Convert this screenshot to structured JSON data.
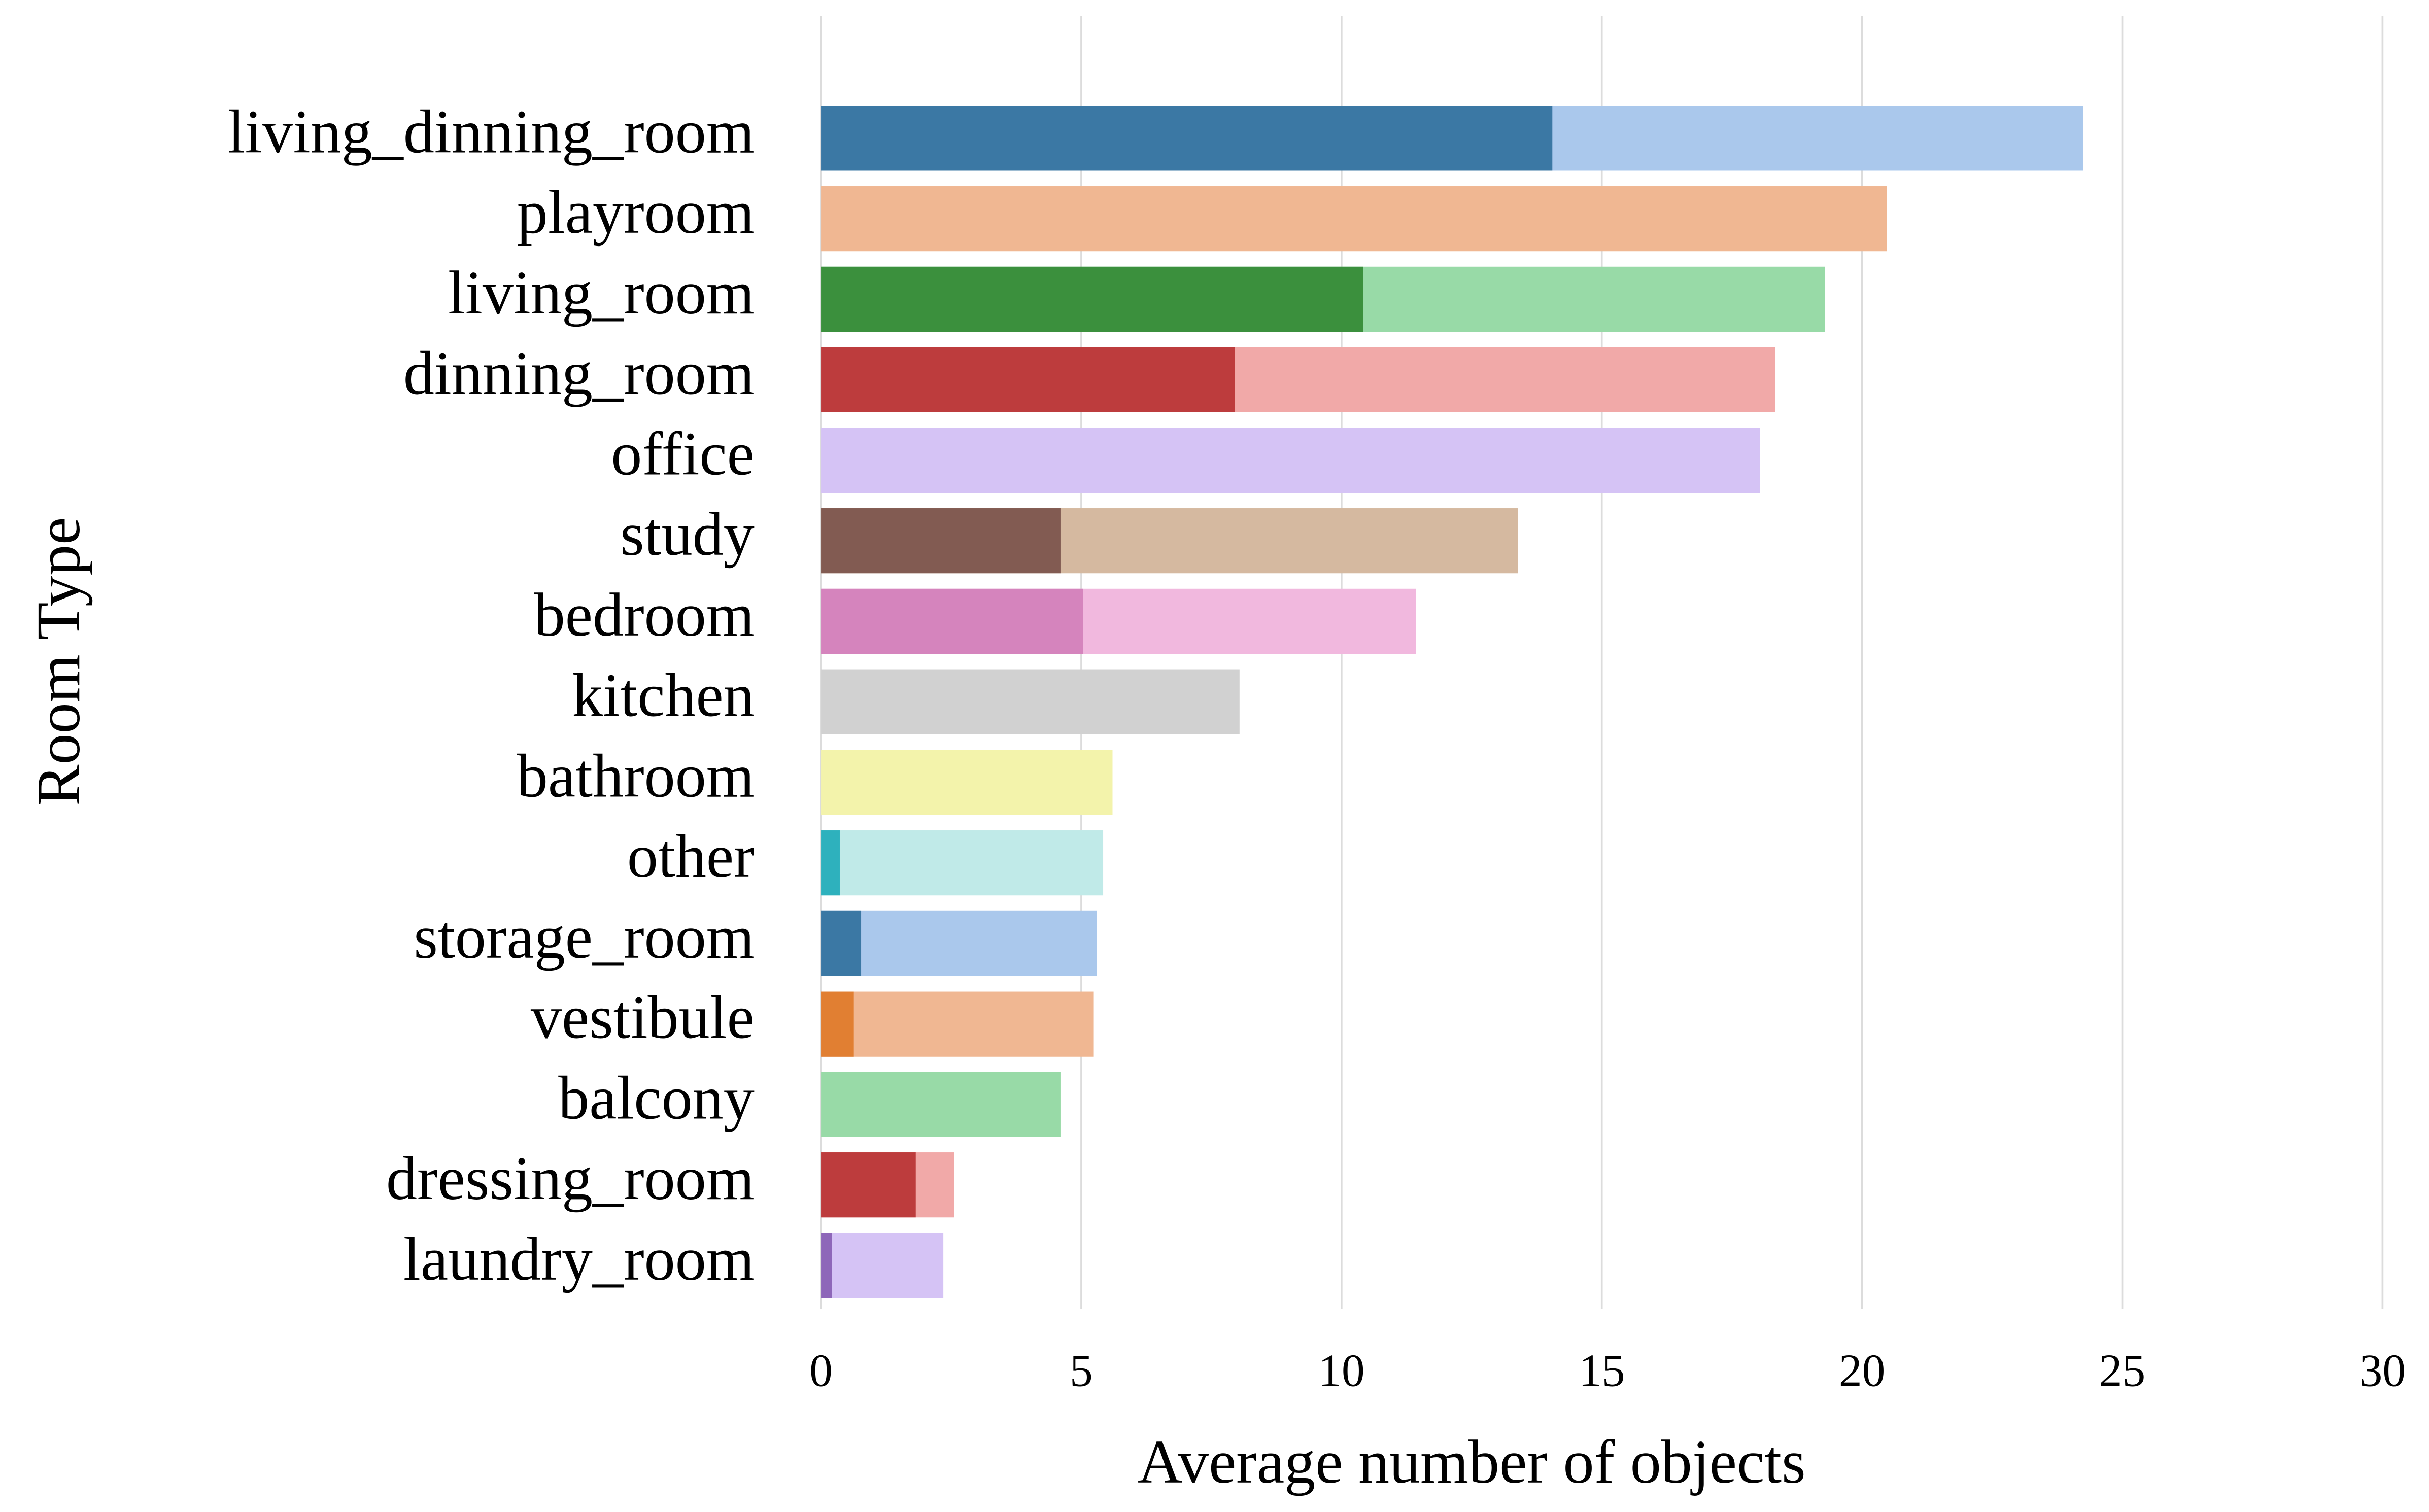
{
  "chart_data": {
    "type": "bar",
    "orientation": "horizontal",
    "overlap": true,
    "xlabel": "Average number of objects",
    "ylabel": "Room Type",
    "categories": [
      "living_dinning_room",
      "playroom",
      "living_room",
      "dinning_room",
      "office",
      "study",
      "bedroom",
      "kitchen",
      "bathroom",
      "other",
      "storage_room",
      "vestibule",
      "balcony",
      "dressing_room",
      "laundry_room"
    ],
    "series": [
      {
        "values": [
          24.25,
          20.48,
          19.29,
          18.33,
          18.04,
          13.39,
          11.43,
          8.04,
          5.6,
          5.42,
          5.3,
          5.24,
          4.61,
          2.56,
          2.35
        ],
        "colors": [
          "#aac8ec",
          "#f0b792",
          "#98daa7",
          "#f1a9a8",
          "#d5c3f5",
          "#d5b9a0",
          "#f1b8de",
          "#d1d1d1",
          "#f3f3ab",
          "#c0eae8",
          "#aac8ec",
          "#f0b792",
          "#98daa7",
          "#f1a9a8",
          "#d5c3f5"
        ]
      },
      {
        "values": [
          14.05,
          null,
          10.42,
          7.95,
          null,
          4.61,
          5.03,
          null,
          null,
          0.36,
          0.77,
          0.63,
          null,
          1.82,
          0.21
        ],
        "colors": [
          "#3b78a4",
          null,
          "#3b903d",
          "#bd3c3d",
          null,
          "#825b52",
          "#d584bd",
          null,
          null,
          "#2eb1bd",
          "#3b78a4",
          "#e17f32",
          null,
          "#bd3c3d",
          "#8e67b9"
        ]
      }
    ],
    "xlim": [
      0,
      30
    ],
    "xticks": [
      0,
      5,
      10,
      15,
      20,
      25,
      30
    ],
    "grid": true
  }
}
